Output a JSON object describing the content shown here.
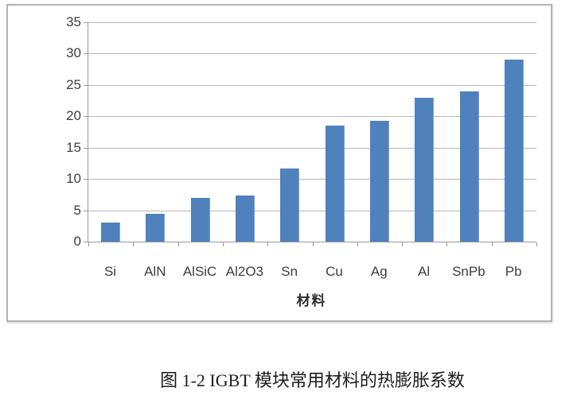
{
  "figure": {
    "caption": "图 1-2 IGBT 模块常用材料的热膨胀系数"
  },
  "chart_data": {
    "type": "bar",
    "categories": [
      "Si",
      "AlN",
      "AlSiC",
      "Al2O3",
      "Sn",
      "Cu",
      "Ag",
      "Al",
      "SnPb",
      "Pb"
    ],
    "values": [
      3,
      4.4,
      7,
      7.4,
      11.7,
      18.5,
      19.3,
      23,
      24,
      29
    ],
    "title": "",
    "xlabel": "材料",
    "ylabel": "",
    "ylim": [
      0,
      35
    ],
    "yticks": [
      0,
      5,
      10,
      15,
      20,
      25,
      30,
      35
    ],
    "grid": true,
    "legend": false,
    "bar_color": "#4f81bd",
    "gridline_color": "#b7b7b7",
    "axis_color": "#9a9a9a",
    "label_color": "#3d3d3d"
  }
}
